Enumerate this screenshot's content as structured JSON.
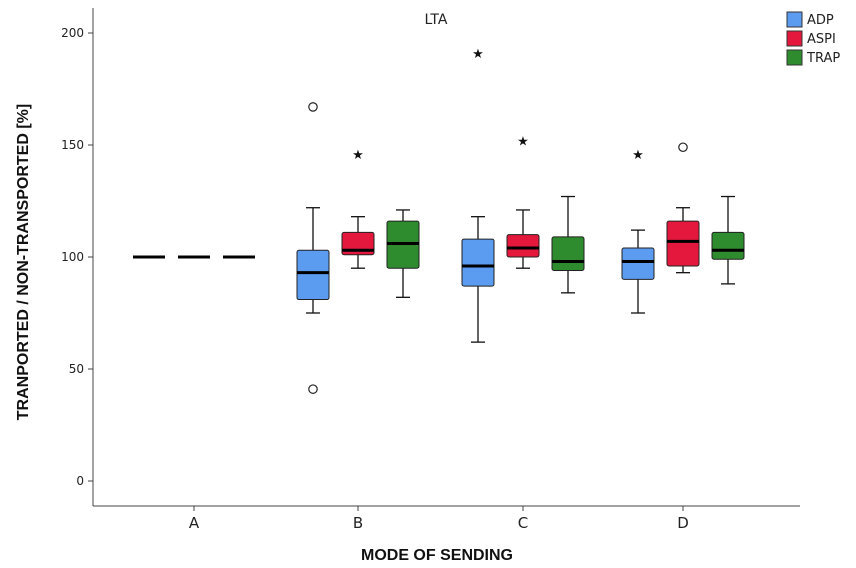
{
  "chart_data": {
    "type": "boxplot",
    "title": "LTA",
    "xlabel": "MODE OF SENDING",
    "ylabel": "TRANPORTED  / NON-TRANSPORTED  [%]",
    "ylim": [
      0,
      210
    ],
    "yticks": [
      0,
      50,
      100,
      150,
      200
    ],
    "categories": [
      "A",
      "B",
      "C",
      "D"
    ],
    "legend_position": "top-right",
    "grid": false,
    "series": [
      {
        "name": "ADP",
        "color": "#5b9bf0",
        "boxes": [
          {
            "q1": 100,
            "median": 100,
            "q3": 100,
            "whisker_low": 100,
            "whisker_high": 100,
            "outliers": [],
            "extremes": []
          },
          {
            "q1": 81,
            "median": 93,
            "q3": 103,
            "whisker_low": 75,
            "whisker_high": 122,
            "outliers": [
              41,
              167
            ],
            "extremes": []
          },
          {
            "q1": 87,
            "median": 96,
            "q3": 108,
            "whisker_low": 62,
            "whisker_high": 118,
            "outliers": [],
            "extremes": [
              191
            ]
          },
          {
            "q1": 90,
            "median": 98,
            "q3": 104,
            "whisker_low": 75,
            "whisker_high": 112,
            "outliers": [],
            "extremes": [
              146
            ]
          }
        ]
      },
      {
        "name": "ASPI",
        "color": "#e3183c",
        "boxes": [
          {
            "q1": 100,
            "median": 100,
            "q3": 100,
            "whisker_low": 100,
            "whisker_high": 100,
            "outliers": [],
            "extremes": []
          },
          {
            "q1": 101,
            "median": 103,
            "q3": 111,
            "whisker_low": 95,
            "whisker_high": 118,
            "outliers": [],
            "extremes": [
              146
            ]
          },
          {
            "q1": 100,
            "median": 104,
            "q3": 110,
            "whisker_low": 95,
            "whisker_high": 121,
            "outliers": [],
            "extremes": [
              152
            ]
          },
          {
            "q1": 96,
            "median": 107,
            "q3": 116,
            "whisker_low": 93,
            "whisker_high": 122,
            "outliers": [
              149
            ],
            "extremes": []
          }
        ]
      },
      {
        "name": "TRAP",
        "color": "#2e8b2e",
        "boxes": [
          {
            "q1": 100,
            "median": 100,
            "q3": 100,
            "whisker_low": 100,
            "whisker_high": 100,
            "outliers": [],
            "extremes": []
          },
          {
            "q1": 95,
            "median": 106,
            "q3": 116,
            "whisker_low": 82,
            "whisker_high": 121,
            "outliers": [],
            "extremes": []
          },
          {
            "q1": 94,
            "median": 98,
            "q3": 109,
            "whisker_low": 84,
            "whisker_high": 127,
            "outliers": [],
            "extremes": []
          },
          {
            "q1": 99,
            "median": 103,
            "q3": 111,
            "whisker_low": 88,
            "whisker_high": 127,
            "outliers": [],
            "extremes": []
          }
        ]
      }
    ]
  }
}
